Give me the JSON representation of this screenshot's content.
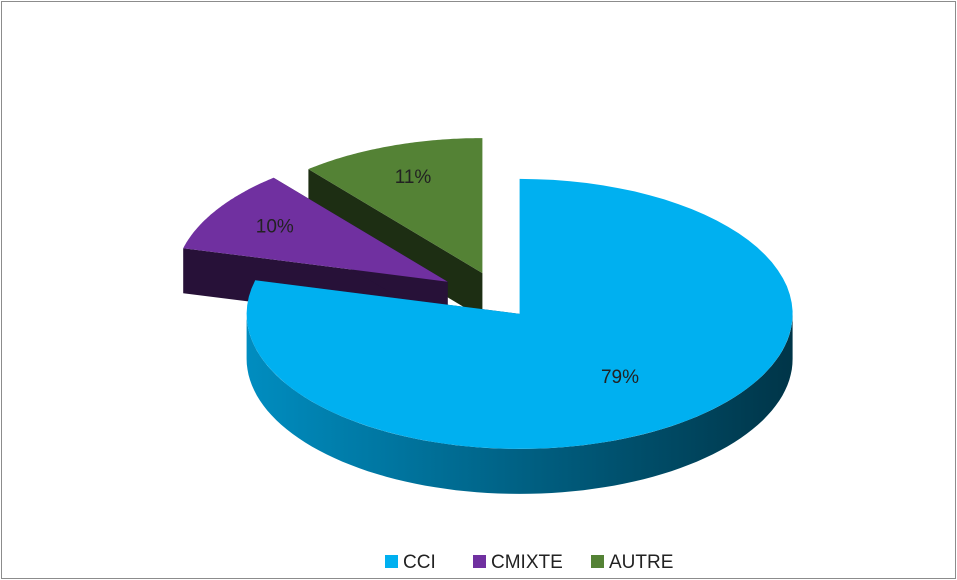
{
  "chart_data": {
    "type": "pie",
    "categories": [
      "CCI",
      "CMIXTE",
      "AUTRE"
    ],
    "values": [
      79,
      10,
      11
    ],
    "value_labels": [
      "79%",
      "10%",
      "11%"
    ],
    "colors": [
      "#00b0f0",
      "#7030a0",
      "#548235"
    ],
    "legend": "bottom"
  }
}
